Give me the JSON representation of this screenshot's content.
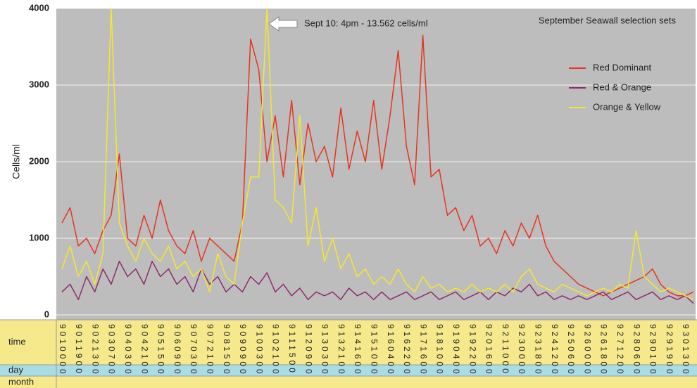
{
  "chart_data": {
    "type": "line",
    "title": "September Seawall selection sets",
    "annotation": "Sept 10: 4pm - 13.562 cells/ml",
    "y_label": "Cells/ml",
    "row_labels": [
      "time",
      "day",
      "month"
    ],
    "categories": [
      "9010000",
      null,
      "9011900",
      null,
      "9021300",
      null,
      "9030700",
      null,
      "9040300",
      null,
      "9042100",
      null,
      "9051500",
      null,
      "9060900",
      null,
      "9070300",
      null,
      "9072100",
      null,
      "9081500",
      null,
      "9090900",
      null,
      "9100300",
      null,
      "9102100",
      null,
      "9111500",
      null,
      "9120900",
      null,
      "9130300",
      null,
      "9132100",
      null,
      "9141600",
      null,
      "9151000",
      null,
      "9160400",
      null,
      "9162200",
      null,
      "9171600",
      null,
      "9181000",
      null,
      "9190400",
      null,
      "9192200",
      null,
      "9201600",
      null,
      "9211000",
      null,
      "9230000",
      null,
      "9231800",
      null,
      "9241200",
      null,
      "9250600",
      null,
      "9260000",
      null,
      "9261800",
      null,
      "9271200",
      null,
      "9280600",
      null,
      "9290100",
      null,
      "9291900",
      null,
      "9301300",
      null
    ],
    "series": [
      {
        "name": "Red Dominant",
        "color": "#e8341c",
        "values": [
          1200,
          1400,
          900,
          1000,
          800,
          1100,
          1300,
          2100,
          1000,
          900,
          1300,
          1000,
          1500,
          1100,
          900,
          800,
          1100,
          700,
          1000,
          900,
          800,
          700,
          1200,
          3600,
          3200,
          2000,
          2600,
          1800,
          2800,
          1700,
          2500,
          2000,
          2200,
          1800,
          2700,
          1900,
          2400,
          2000,
          2800,
          1900,
          2600,
          3450,
          2200,
          1700,
          3650,
          1800,
          1900,
          1300,
          1400,
          1100,
          1300,
          900,
          1000,
          800,
          1100,
          900,
          1200,
          1000,
          1300,
          900,
          700,
          600,
          500,
          400,
          350,
          300,
          250,
          300,
          350,
          400,
          450,
          500,
          600,
          400,
          300,
          250,
          250,
          300
        ]
      },
      {
        "name": "Red & Orange",
        "color": "#8e2b6c",
        "values": [
          300,
          400,
          200,
          500,
          300,
          600,
          400,
          700,
          500,
          600,
          400,
          700,
          500,
          600,
          400,
          500,
          300,
          600,
          400,
          500,
          300,
          400,
          300,
          500,
          400,
          550,
          300,
          400,
          250,
          350,
          200,
          300,
          250,
          300,
          200,
          350,
          250,
          300,
          200,
          300,
          200,
          250,
          300,
          200,
          250,
          300,
          200,
          250,
          300,
          200,
          250,
          300,
          200,
          300,
          250,
          350,
          300,
          400,
          250,
          300,
          200,
          250,
          200,
          250,
          200,
          250,
          300,
          200,
          250,
          300,
          200,
          250,
          300,
          200,
          250,
          200,
          250,
          150
        ]
      },
      {
        "name": "Orange & Yellow",
        "color": "#f5e82a",
        "values": [
          600,
          900,
          500,
          700,
          400,
          800,
          4000,
          1200,
          900,
          700,
          1000,
          800,
          700,
          900,
          600,
          700,
          500,
          600,
          300,
          800,
          500,
          400,
          1200,
          1800,
          1800,
          4000,
          1500,
          1400,
          1200,
          2600,
          900,
          1400,
          700,
          1000,
          600,
          800,
          500,
          600,
          400,
          500,
          400,
          600,
          400,
          300,
          500,
          350,
          400,
          300,
          350,
          300,
          400,
          300,
          350,
          300,
          400,
          300,
          500,
          600,
          400,
          350,
          300,
          400,
          350,
          300,
          250,
          300,
          350,
          300,
          400,
          350,
          1100,
          500,
          400,
          300,
          350,
          300,
          250,
          200
        ]
      }
    ],
    "ylim": [
      0,
      4000
    ],
    "yticks": [
      0,
      1000,
      2000,
      3000,
      4000
    ],
    "grid": true,
    "legend": "upper right"
  }
}
